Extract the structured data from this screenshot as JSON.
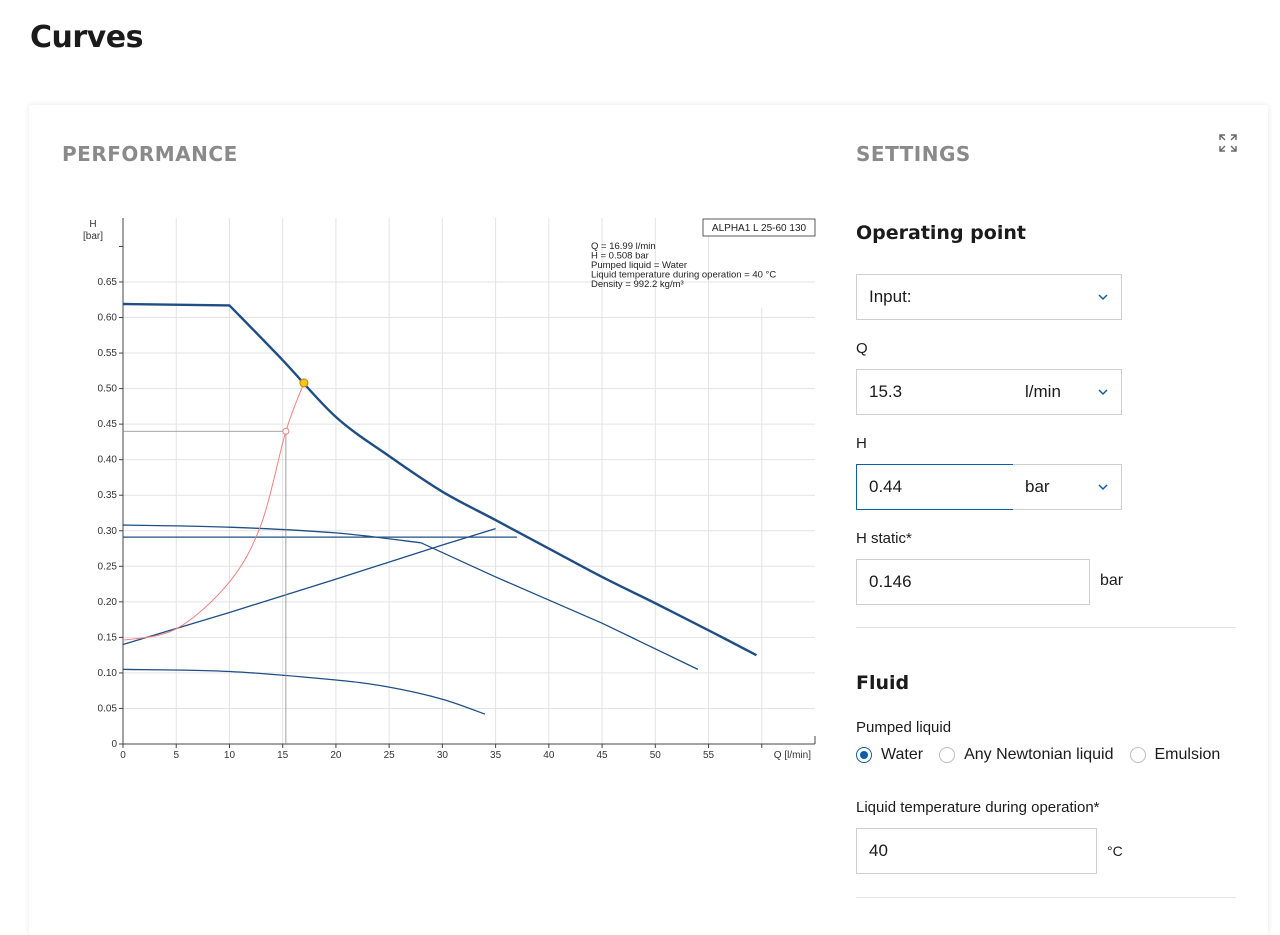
{
  "page_title": "Curves",
  "performance": {
    "title": "PERFORMANCE"
  },
  "settings": {
    "title": "SETTINGS",
    "operating_point": {
      "title": "Operating point",
      "input_select": "Input:",
      "q": {
        "label": "Q",
        "value": "15.3",
        "unit": "l/min"
      },
      "h": {
        "label": "H",
        "value": "0.44",
        "unit": "bar"
      },
      "h_static": {
        "label": "H static*",
        "value": "0.146",
        "unit": "bar"
      }
    },
    "fluid": {
      "title": "Fluid",
      "pumped_liquid_label": "Pumped liquid",
      "options": [
        "Water",
        "Any Newtonian liquid",
        "Emulsion"
      ],
      "selected": "Water",
      "temperature": {
        "label": "Liquid temperature during operation*",
        "value": "40",
        "unit": "°C"
      }
    }
  },
  "colors": {
    "curve": "#1f4e85",
    "system_curve": "#f08080",
    "accent": "#0a5fa8",
    "duty_point": "#f5c518"
  },
  "chart_data": {
    "type": "line",
    "pump_label": "ALPHA1 L 25-60 130",
    "info_lines": [
      "Q = 16.99 l/min",
      "H = 0.508 bar",
      "Pumped liquid = Water",
      "Liquid temperature during operation = 40 °C",
      "Density = 992.2 kg/m³"
    ],
    "ylabel": "H",
    "yunit": "[bar]",
    "xlabel": "Q [l/min]",
    "xlim": [
      0,
      65
    ],
    "ylim": [
      0,
      0.74
    ],
    "xticks": [
      0,
      5,
      10,
      15,
      20,
      25,
      30,
      35,
      40,
      45,
      50,
      55
    ],
    "yticks": [
      "0",
      "0.05",
      "0.10",
      "0.15",
      "0.20",
      "0.25",
      "0.30",
      "0.35",
      "0.40",
      "0.45",
      "0.50",
      "0.55",
      "0.60",
      "0.65"
    ],
    "grid": true,
    "series": [
      {
        "role": "max-curve",
        "points": [
          [
            0,
            0.619
          ],
          [
            5,
            0.619
          ],
          [
            10,
            0.617
          ],
          [
            15,
            0.54
          ],
          [
            20,
            0.46
          ],
          [
            25,
            0.405
          ],
          [
            30,
            0.355
          ],
          [
            35,
            0.315
          ],
          [
            40,
            0.275
          ],
          [
            45,
            0.235
          ],
          [
            50,
            0.198
          ],
          [
            55,
            0.16
          ],
          [
            59.5,
            0.125
          ]
        ]
      },
      {
        "role": "speed-curve-2",
        "points": [
          [
            0,
            0.308
          ],
          [
            10,
            0.305
          ],
          [
            20,
            0.297
          ],
          [
            28,
            0.283
          ],
          [
            35,
            0.235
          ],
          [
            45,
            0.17
          ],
          [
            54,
            0.105
          ]
        ]
      },
      {
        "role": "constant-pressure",
        "points": [
          [
            0,
            0.291
          ],
          [
            37,
            0.291
          ]
        ]
      },
      {
        "role": "proportional-pressure",
        "points": [
          [
            0,
            0.14
          ],
          [
            10,
            0.185
          ],
          [
            20,
            0.232
          ],
          [
            30,
            0.28
          ],
          [
            35,
            0.303
          ]
        ]
      },
      {
        "role": "min-curve",
        "points": [
          [
            0,
            0.105
          ],
          [
            10,
            0.102
          ],
          [
            20,
            0.09
          ],
          [
            25,
            0.08
          ],
          [
            30,
            0.063
          ],
          [
            34,
            0.042
          ]
        ]
      },
      {
        "role": "system-curve",
        "points": [
          [
            0,
            0.146
          ],
          [
            5,
            0.162
          ],
          [
            10,
            0.228
          ],
          [
            13,
            0.31
          ],
          [
            15.3,
            0.44
          ],
          [
            17,
            0.508
          ]
        ]
      }
    ],
    "duty_point": {
      "q": 16.99,
      "h": 0.508
    },
    "requested_point": {
      "q": 15.3,
      "h": 0.44
    }
  }
}
